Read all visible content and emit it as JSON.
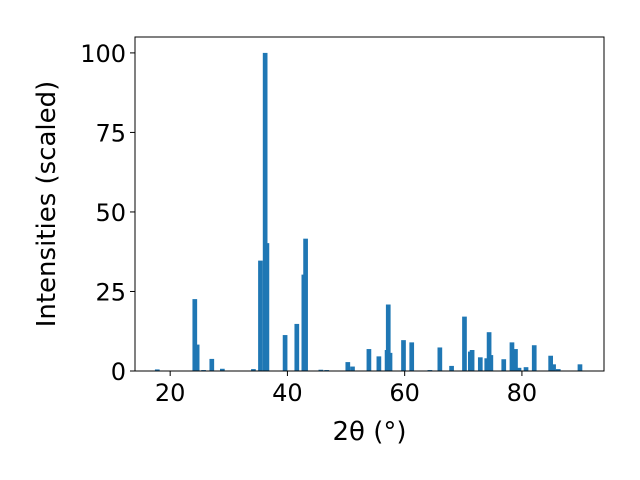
{
  "chart_data": {
    "type": "bar",
    "title": "",
    "xlabel": "2θ (°)",
    "ylabel": "Intensities (scaled)",
    "xlim": [
      14,
      94
    ],
    "ylim": [
      0,
      105
    ],
    "xticks": [
      20,
      40,
      60,
      80
    ],
    "yticks": [
      0,
      25,
      50,
      75,
      100
    ],
    "grid": false,
    "bar_color": "#1f77b4",
    "bar_width_deg": 0.8,
    "series": [
      {
        "x": [
          17.8,
          24.2,
          24.6,
          25.7,
          27.1,
          28.9,
          34.2,
          35.4,
          36.2,
          36.5,
          39.6,
          41.6,
          42.8,
          43.1,
          45.7,
          46.7,
          50.3,
          51.1,
          53.9,
          55.6,
          57.0,
          57.2,
          57.5,
          59.8,
          61.2,
          64.3,
          66.0,
          68.0,
          70.2,
          71.2,
          71.5,
          72.9,
          74.0,
          74.4,
          74.7,
          76.9,
          78.3,
          78.9,
          79.5,
          80.7,
          82.1,
          84.9,
          85.4,
          86.2,
          89.9
        ],
        "values": [
          0.5,
          22.6,
          8.3,
          0.3,
          3.8,
          0.7,
          0.6,
          34.7,
          100.0,
          40.2,
          11.3,
          14.8,
          30.3,
          41.6,
          0.4,
          0.3,
          2.8,
          1.4,
          6.9,
          4.6,
          6.6,
          20.9,
          5.7,
          9.7,
          9.0,
          0.3,
          7.4,
          1.6,
          17.1,
          6.1,
          6.6,
          4.3,
          4.0,
          12.2,
          5.0,
          3.7,
          9.0,
          6.9,
          1.0,
          1.2,
          8.1,
          4.8,
          2.1,
          0.6,
          2.1
        ]
      }
    ]
  }
}
